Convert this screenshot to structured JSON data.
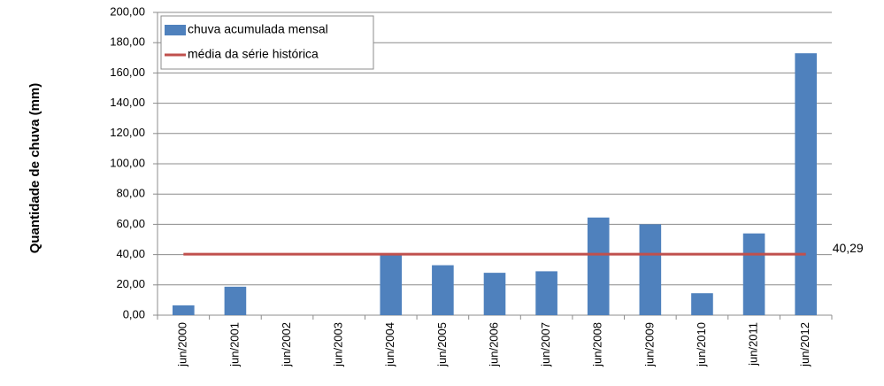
{
  "chart_data": {
    "type": "bar",
    "ylabel": "Quantidade de chuva (mm)",
    "categories": [
      "jun/2000",
      "jun/2001",
      "jun/2002",
      "jun/2003",
      "jun/2004",
      "jun/2005",
      "jun/2006",
      "jun/2007",
      "jun/2008",
      "jun/2009",
      "jun/2010",
      "jun/2011",
      "jun/2012"
    ],
    "series": [
      {
        "name": "chuva acumulada mensal",
        "type": "bar",
        "color": "#4f81bd",
        "values": [
          6.5,
          18.8,
          0,
          0,
          40,
          33,
          28,
          29,
          64.5,
          60,
          14.5,
          54,
          173
        ]
      },
      {
        "name": "média da série histórica",
        "type": "line",
        "color": "#c0504d",
        "values": [
          40.29,
          40.29,
          40.29,
          40.29,
          40.29,
          40.29,
          40.29,
          40.29,
          40.29,
          40.29,
          40.29,
          40.29,
          40.29
        ],
        "value_labels": [
          null,
          null,
          null,
          null,
          null,
          null,
          null,
          null,
          null,
          null,
          null,
          null,
          "40,29"
        ]
      }
    ],
    "ylim": [
      0,
      200
    ],
    "yticks": [
      {
        "value": 0,
        "label": "0,00"
      },
      {
        "value": 20,
        "label": "20,00"
      },
      {
        "value": 40,
        "label": "40,00"
      },
      {
        "value": 60,
        "label": "60,00"
      },
      {
        "value": 80,
        "label": "80,00"
      },
      {
        "value": 100,
        "label": "100,00"
      },
      {
        "value": 120,
        "label": "120,00"
      },
      {
        "value": 140,
        "label": "140,00"
      },
      {
        "value": 160,
        "label": "160,00"
      },
      {
        "value": 180,
        "label": "180,00"
      },
      {
        "value": 200,
        "label": "200,00"
      }
    ],
    "grid": true,
    "legend": "upper left"
  }
}
